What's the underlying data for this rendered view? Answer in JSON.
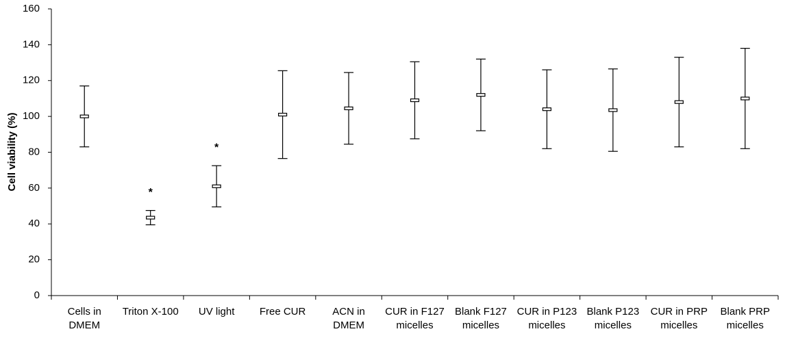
{
  "chart_data": {
    "type": "errorbar",
    "y_label": "Cell viability (%)",
    "categories": [
      [
        "Cells in",
        "DMEM"
      ],
      [
        "Triton X-100"
      ],
      [
        "UV light"
      ],
      [
        "Free CUR"
      ],
      [
        "ACN in",
        "DMEM"
      ],
      [
        "CUR in F127",
        "micelles"
      ],
      [
        "Blank F127",
        "micelles"
      ],
      [
        "CUR in P123",
        "micelles"
      ],
      [
        "Blank P123",
        "micelles"
      ],
      [
        "CUR in PRP",
        "micelles"
      ],
      [
        "Blank PRP",
        "micelles"
      ]
    ],
    "values": [
      100,
      43.5,
      61,
      101,
      104.5,
      109,
      112,
      104,
      103.5,
      108,
      110
    ],
    "errors": [
      17,
      4,
      11.5,
      24.5,
      20,
      21.5,
      20,
      22,
      23,
      25,
      28
    ],
    "color": "#000000",
    "ylim": [
      0,
      160
    ],
    "yticks": [
      0,
      20,
      40,
      60,
      80,
      100,
      120,
      140,
      160
    ],
    "annotations": [
      {
        "text": "*",
        "category_index": 1
      },
      {
        "text": "*",
        "category_index": 2
      }
    ]
  }
}
